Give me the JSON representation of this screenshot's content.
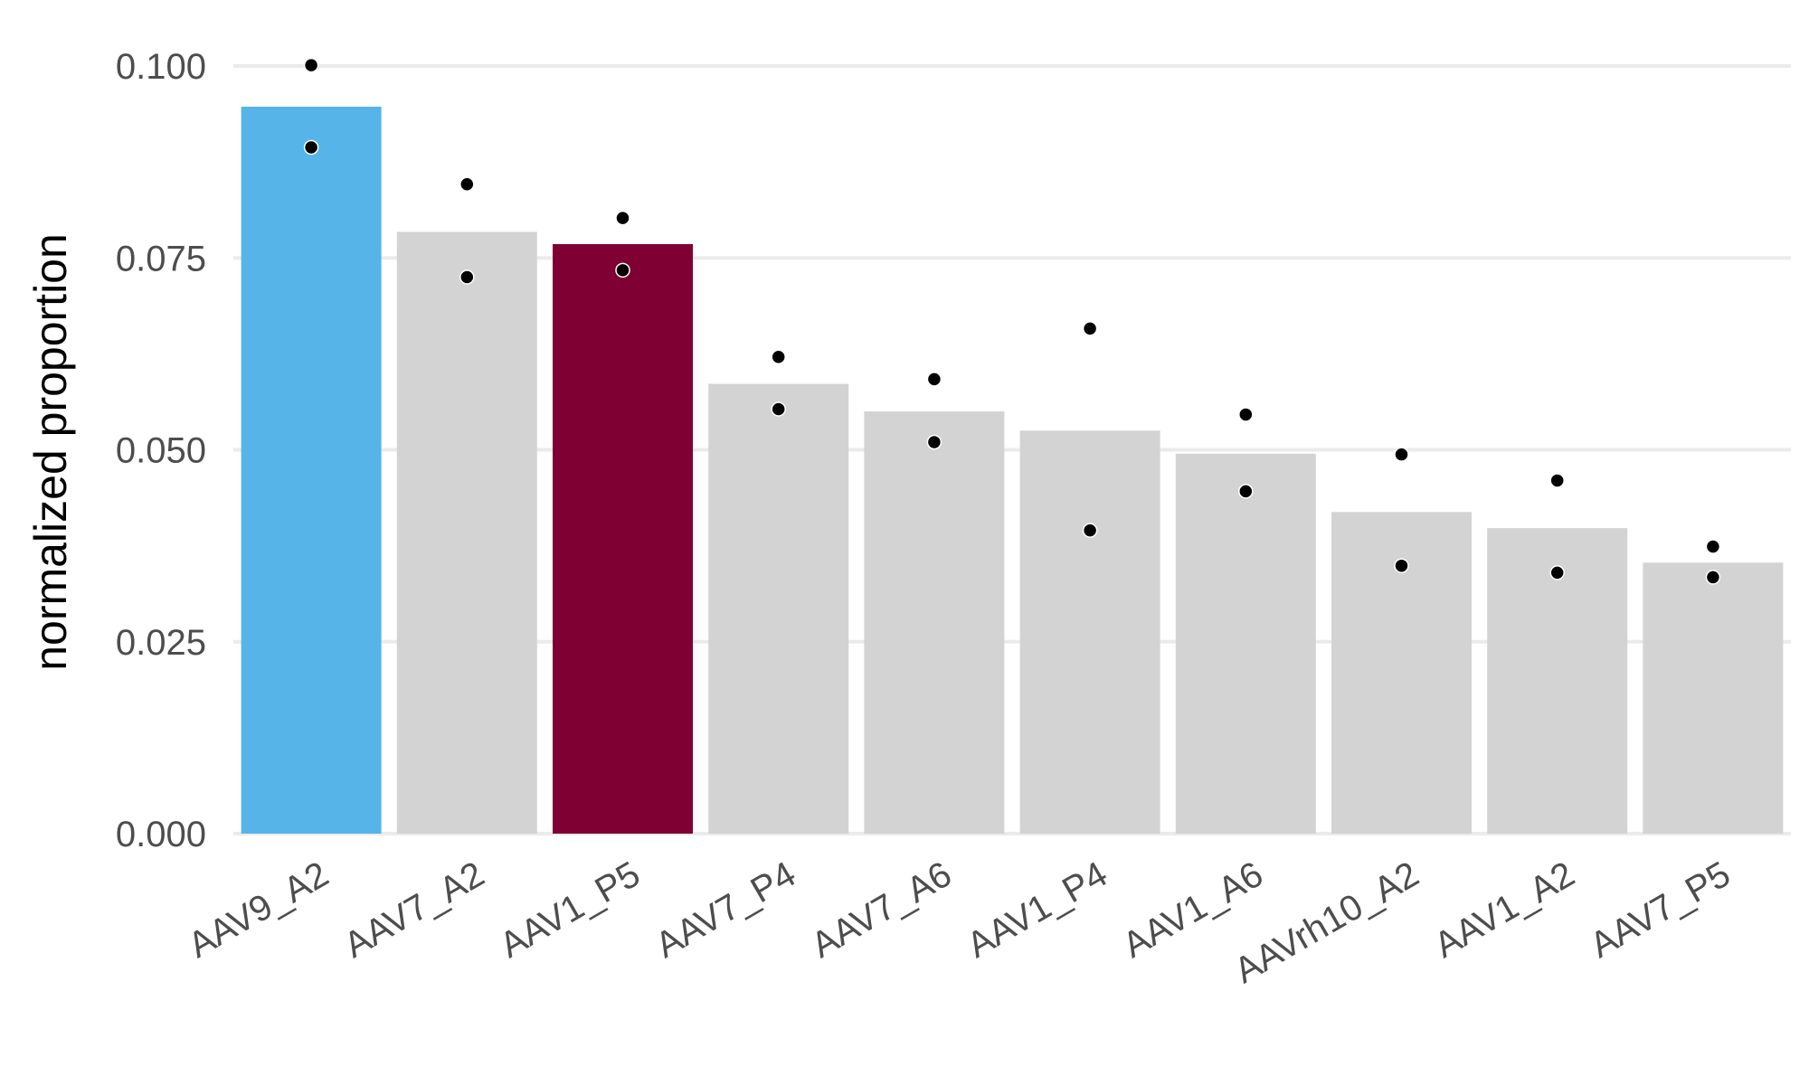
{
  "chart_data": {
    "type": "bar",
    "title": "",
    "xlabel": "",
    "ylabel": "normalized proportion",
    "ylim": [
      0,
      0.104
    ],
    "yticks": [
      "0.000",
      "0.025",
      "0.050",
      "0.075",
      "0.100"
    ],
    "ytick_values": [
      0,
      0.025,
      0.05,
      0.075,
      0.1
    ],
    "grid": "horizontal",
    "legend": "none",
    "categories": [
      "AAV9_A2",
      "AAV7_A2",
      "AAV1_P5",
      "AAV7_P4",
      "AAV7_A6",
      "AAV1_P4",
      "AAV1_A6",
      "AAVrh10_A2",
      "AAV1_A2",
      "AAV7_P5"
    ],
    "values": [
      0.0947,
      0.0784,
      0.0768,
      0.0586,
      0.055,
      0.0525,
      0.0495,
      0.0419,
      0.0398,
      0.0353
    ],
    "bar_colors": [
      "#56B4E9",
      "#D3D3D3",
      "#7F0033",
      "#D3D3D3",
      "#D3D3D3",
      "#D3D3D3",
      "#D3D3D3",
      "#D3D3D3",
      "#D3D3D3",
      "#D3D3D3"
    ],
    "points": [
      [
        0.1001,
        0.0894
      ],
      [
        0.0846,
        0.0725
      ],
      [
        0.0802,
        0.0734
      ],
      [
        0.0621,
        0.0553
      ],
      [
        0.0592,
        0.051
      ],
      [
        0.0658,
        0.0395
      ],
      [
        0.0546,
        0.0446
      ],
      [
        0.0494,
        0.0349
      ],
      [
        0.046,
        0.034
      ],
      [
        0.0374,
        0.0334
      ]
    ],
    "point_color": "#000000",
    "gridline_color": "#ebebeb"
  }
}
